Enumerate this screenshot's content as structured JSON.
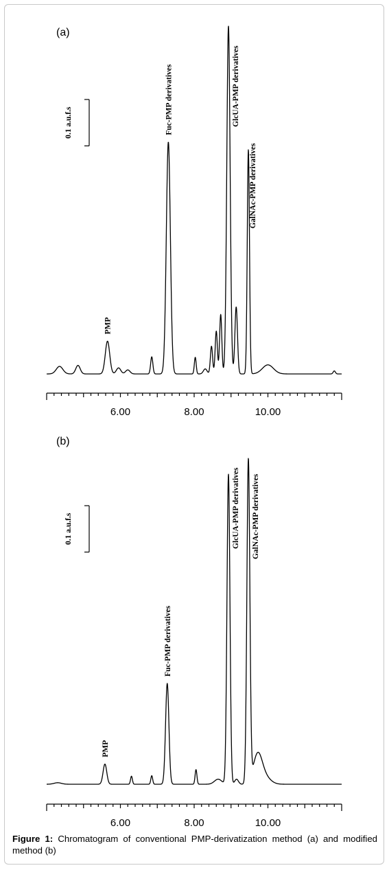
{
  "caption": {
    "label": "Figure 1:",
    "text": " Chromatogram of conventional PMP-derivatization method (a) and modified method (b)"
  },
  "chart_data": [
    {
      "type": "line",
      "panel_label": "(a)",
      "title": "",
      "xlabel": "",
      "ylabel": "",
      "xlim": [
        4.0,
        12.0
      ],
      "x_ticks": [
        6.0,
        8.0,
        10.0
      ],
      "x_tick_labels": [
        "6.00",
        "8.00",
        "10.00"
      ],
      "x_minor_step": 0.2,
      "scale_bar_label": "0.1 a.u.f.s",
      "scale_bar_value": 0.1,
      "baseline": 0.0,
      "series": [
        {
          "peaks": [
            {
              "x": 4.35,
              "h": 0.015,
              "w": 0.09
            },
            {
              "x": 4.85,
              "h": 0.017,
              "w": 0.06
            },
            {
              "x": 5.65,
              "h": 0.065,
              "w": 0.06
            },
            {
              "x": 5.95,
              "h": 0.012,
              "w": 0.06
            },
            {
              "x": 6.2,
              "h": 0.008,
              "w": 0.06
            },
            {
              "x": 6.85,
              "h": 0.034,
              "w": 0.03
            },
            {
              "x": 7.3,
              "h": 0.46,
              "w": 0.055
            },
            {
              "x": 8.03,
              "h": 0.033,
              "w": 0.025
            },
            {
              "x": 8.3,
              "h": 0.01,
              "w": 0.05
            },
            {
              "x": 8.47,
              "h": 0.055,
              "w": 0.03
            },
            {
              "x": 8.6,
              "h": 0.085,
              "w": 0.03
            },
            {
              "x": 8.72,
              "h": 0.118,
              "w": 0.03
            },
            {
              "x": 8.93,
              "h": 0.69,
              "w": 0.045
            },
            {
              "x": 9.14,
              "h": 0.133,
              "w": 0.035
            },
            {
              "x": 9.47,
              "h": 0.445,
              "w": 0.03
            },
            {
              "x": 10.0,
              "h": 0.018,
              "w": 0.15
            },
            {
              "x": 11.8,
              "h": 0.006,
              "w": 0.03
            }
          ]
        }
      ],
      "annotations": [
        {
          "text": "PMP",
          "x": 5.65
        },
        {
          "text": "Fuc-PMP derivatives",
          "x": 7.3
        },
        {
          "text": "GlcUA-PMP derivatives",
          "x": 8.93
        },
        {
          "text": "GalNAc-PMP derivatives",
          "x": 9.47
        }
      ]
    },
    {
      "type": "line",
      "panel_label": "(b)",
      "title": "",
      "xlabel": "",
      "ylabel": "",
      "xlim": [
        4.0,
        12.0
      ],
      "x_ticks": [
        6.0,
        8.0,
        10.0
      ],
      "x_tick_labels": [
        "6.00",
        "8.00",
        "10.00"
      ],
      "x_minor_step": 0.2,
      "scale_bar_label": "0.1 a.u.f.s",
      "scale_bar_value": 0.1,
      "baseline": 0.0,
      "series": [
        {
          "peaks": [
            {
              "x": 4.3,
              "h": 0.003,
              "w": 0.1
            },
            {
              "x": 5.58,
              "h": 0.04,
              "w": 0.05
            },
            {
              "x": 6.3,
              "h": 0.016,
              "w": 0.025
            },
            {
              "x": 6.85,
              "h": 0.017,
              "w": 0.025
            },
            {
              "x": 7.27,
              "h": 0.2,
              "w": 0.045
            },
            {
              "x": 8.05,
              "h": 0.029,
              "w": 0.025
            },
            {
              "x": 8.65,
              "h": 0.01,
              "w": 0.1
            },
            {
              "x": 8.93,
              "h": 0.615,
              "w": 0.04
            },
            {
              "x": 9.15,
              "h": 0.01,
              "w": 0.05
            },
            {
              "x": 9.47,
              "h": 0.64,
              "w": 0.04
            },
            {
              "x": 9.72,
              "h": 0.055,
              "w": 0.12
            },
            {
              "x": 9.9,
              "h": 0.015,
              "w": 0.16
            }
          ]
        }
      ],
      "annotations": [
        {
          "text": "PMP",
          "x": 5.58
        },
        {
          "text": "Fuc-PMP derivatives",
          "x": 7.27
        },
        {
          "text": "GlcUA-PMP derivatives",
          "x": 8.93
        },
        {
          "text": "GalNAc-PMP derivatives",
          "x": 9.47
        }
      ]
    }
  ]
}
